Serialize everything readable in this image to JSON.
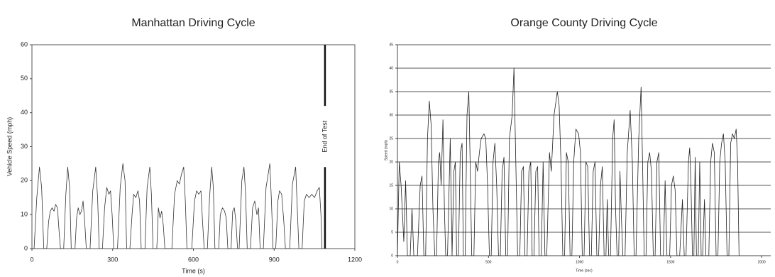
{
  "chart_data": [
    {
      "type": "line",
      "title": "Manhattan Driving Cycle",
      "x_label": "Time (s)",
      "y_label": "Vehicle Speed (mph)",
      "xlim": [
        0,
        1200
      ],
      "xticks": [
        0,
        300,
        600,
        900,
        1200
      ],
      "ylim": [
        0,
        60
      ],
      "yticks": [
        0,
        10,
        20,
        30,
        40,
        50,
        60
      ],
      "grid": false,
      "frame": true,
      "annotation": {
        "text": "End of Test",
        "x": 1089
      },
      "x": [
        0,
        8,
        18,
        28,
        36,
        44,
        55,
        62,
        68,
        75,
        82,
        88,
        95,
        100,
        106,
        118,
        126,
        133,
        140,
        146,
        160,
        166,
        172,
        178,
        184,
        190,
        196,
        202,
        216,
        226,
        237,
        244,
        250,
        262,
        270,
        278,
        286,
        292,
        298,
        304,
        318,
        328,
        338,
        346,
        352,
        364,
        372,
        378,
        386,
        394,
        400,
        406,
        420,
        428,
        438,
        444,
        450,
        464,
        470,
        476,
        482,
        488,
        494,
        520,
        530,
        540,
        548,
        556,
        564,
        570,
        576,
        594,
        604,
        612,
        620,
        628,
        634,
        640,
        652,
        660,
        668,
        674,
        680,
        694,
        700,
        708,
        716,
        722,
        728,
        740,
        746,
        752,
        758,
        764,
        770,
        780,
        788,
        794,
        800,
        812,
        820,
        828,
        836,
        842,
        848,
        860,
        870,
        884,
        890,
        896,
        906,
        914,
        920,
        928,
        936,
        942,
        958,
        968,
        980,
        986,
        992,
        1004,
        1012,
        1020,
        1030,
        1040,
        1050,
        1060,
        1068,
        1074,
        1078
      ],
      "series": [
        {
          "color": "#333333",
          "values": [
            0,
            0,
            15,
            24,
            18,
            0,
            0,
            8,
            11,
            12,
            11,
            13,
            12,
            6,
            0,
            0,
            16,
            24,
            18,
            0,
            0,
            9,
            12,
            10,
            11,
            14,
            8,
            0,
            0,
            17,
            24,
            15,
            0,
            0,
            12,
            18,
            16,
            17,
            10,
            0,
            0,
            18,
            25,
            20,
            0,
            0,
            10,
            16,
            15,
            17,
            14,
            0,
            0,
            18,
            24,
            16,
            0,
            0,
            12,
            9,
            11,
            7,
            0,
            0,
            16,
            20,
            19,
            22,
            24,
            14,
            0,
            0,
            14,
            17,
            16,
            17,
            8,
            0,
            0,
            15,
            24,
            18,
            0,
            0,
            10,
            12,
            11,
            9,
            0,
            0,
            11,
            12,
            8,
            0,
            0,
            20,
            24,
            16,
            0,
            0,
            12,
            14,
            10,
            12,
            0,
            0,
            18,
            25,
            14,
            0,
            0,
            14,
            17,
            16,
            8,
            0,
            0,
            19,
            24,
            12,
            0,
            0,
            14,
            16,
            15,
            16,
            15,
            17,
            18,
            10,
            0
          ]
        }
      ]
    },
    {
      "type": "line",
      "title": "Orange County Driving Cycle",
      "x_label": "Time (sec)",
      "y_label": "Speed (mph)",
      "xlim": [
        0,
        2050
      ],
      "xticks": [
        0,
        500,
        1000,
        1500,
        2000
      ],
      "ylim": [
        0,
        45
      ],
      "yticks": [
        0,
        5,
        10,
        15,
        20,
        25,
        30,
        35,
        40,
        45
      ],
      "grid": true,
      "frame": false,
      "x": [
        0,
        10,
        20,
        35,
        45,
        55,
        70,
        80,
        90,
        110,
        125,
        135,
        145,
        155,
        165,
        175,
        185,
        195,
        205,
        215,
        225,
        232,
        240,
        250,
        258,
        265,
        275,
        290,
        300,
        310,
        318,
        325,
        335,
        345,
        355,
        362,
        372,
        382,
        392,
        400,
        408,
        420,
        430,
        440,
        450,
        460,
        475,
        485,
        495,
        505,
        515,
        525,
        535,
        545,
        555,
        565,
        575,
        585,
        595,
        605,
        615,
        630,
        640,
        650,
        660,
        672,
        682,
        692,
        700,
        712,
        722,
        732,
        740,
        750,
        760,
        770,
        778,
        790,
        800,
        810,
        820,
        835,
        845,
        860,
        878,
        888,
        898,
        908,
        918,
        928,
        938,
        948,
        958,
        968,
        980,
        995,
        1005,
        1015,
        1025,
        1035,
        1045,
        1055,
        1065,
        1075,
        1085,
        1095,
        1105,
        1115,
        1125,
        1135,
        1145,
        1152,
        1160,
        1170,
        1182,
        1190,
        1198,
        1206,
        1215,
        1222,
        1230,
        1238,
        1250,
        1262,
        1278,
        1290,
        1300,
        1310,
        1325,
        1338,
        1346,
        1355,
        1365,
        1375,
        1385,
        1395,
        1405,
        1415,
        1425,
        1435,
        1445,
        1460,
        1470,
        1480,
        1495,
        1505,
        1515,
        1525,
        1535,
        1550,
        1565,
        1575,
        1585,
        1598,
        1605,
        1612,
        1620,
        1628,
        1635,
        1642,
        1652,
        1660,
        1668,
        1676,
        1686,
        1694,
        1710,
        1720,
        1730,
        1740,
        1750,
        1760,
        1770,
        1780,
        1790,
        1800,
        1810,
        1820,
        1830,
        1840,
        1850,
        1860,
        1868,
        1876
      ],
      "series": [
        {
          "color": "#222222",
          "values": [
            0,
            20,
            15,
            3,
            16,
            0,
            0,
            10,
            0,
            0,
            15,
            17,
            0,
            0,
            25,
            33,
            28,
            10,
            0,
            0,
            20,
            22,
            15,
            29,
            10,
            0,
            0,
            25,
            0,
            18,
            20,
            0,
            0,
            22,
            24,
            0,
            0,
            30,
            35,
            18,
            0,
            0,
            20,
            18,
            22,
            25,
            26,
            25,
            15,
            0,
            0,
            20,
            24,
            15,
            0,
            0,
            18,
            21,
            0,
            0,
            25,
            30,
            40,
            20,
            0,
            0,
            18,
            19,
            0,
            0,
            18,
            20,
            0,
            0,
            18,
            19,
            0,
            0,
            20,
            0,
            0,
            22,
            18,
            30,
            35,
            32,
            20,
            0,
            0,
            22,
            20,
            0,
            0,
            20,
            27,
            26,
            22,
            0,
            0,
            20,
            19,
            0,
            0,
            18,
            20,
            0,
            0,
            15,
            19,
            0,
            0,
            12,
            0,
            0,
            25,
            29,
            10,
            0,
            0,
            18,
            8,
            0,
            0,
            22,
            31,
            20,
            0,
            0,
            25,
            36,
            20,
            0,
            0,
            20,
            22,
            18,
            0,
            0,
            20,
            22,
            0,
            0,
            16,
            0,
            0,
            15,
            17,
            14,
            0,
            0,
            12,
            0,
            0,
            20,
            23,
            15,
            0,
            0,
            21,
            0,
            0,
            20,
            0,
            0,
            12,
            0,
            0,
            20,
            24,
            22,
            0,
            0,
            20,
            24,
            26,
            20,
            0,
            0,
            24,
            26,
            25,
            27,
            20,
            0
          ]
        }
      ]
    }
  ]
}
